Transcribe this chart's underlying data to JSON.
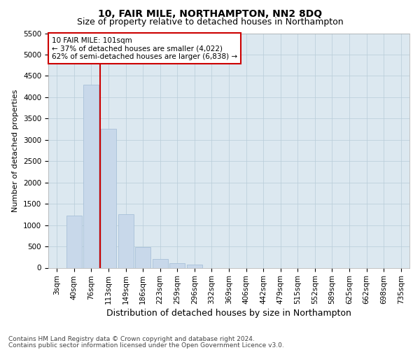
{
  "title": "10, FAIR MILE, NORTHAMPTON, NN2 8DQ",
  "subtitle": "Size of property relative to detached houses in Northampton",
  "xlabel": "Distribution of detached houses by size in Northampton",
  "ylabel": "Number of detached properties",
  "footer_line1": "Contains HM Land Registry data © Crown copyright and database right 2024.",
  "footer_line2": "Contains public sector information licensed under the Open Government Licence v3.0.",
  "bar_labels": [
    "3sqm",
    "40sqm",
    "76sqm",
    "113sqm",
    "149sqm",
    "186sqm",
    "223sqm",
    "259sqm",
    "296sqm",
    "332sqm",
    "369sqm",
    "406sqm",
    "442sqm",
    "479sqm",
    "515sqm",
    "552sqm",
    "589sqm",
    "625sqm",
    "662sqm",
    "698sqm",
    "735sqm"
  ],
  "bar_values": [
    0,
    1230,
    4300,
    3260,
    1260,
    490,
    200,
    100,
    70,
    0,
    0,
    0,
    0,
    0,
    0,
    0,
    0,
    0,
    0,
    0,
    0
  ],
  "bar_color": "#c8d8ea",
  "bar_edge_color": "#a8c0d8",
  "vline_color": "#cc0000",
  "annotation_text": "10 FAIR MILE: 101sqm\n← 37% of detached houses are smaller (4,022)\n62% of semi-detached houses are larger (6,838) →",
  "annotation_box_color": "#ffffff",
  "annotation_box_edge": "#cc0000",
  "annotation_fontsize": 7.5,
  "ylim_max": 5500,
  "yticks": [
    0,
    500,
    1000,
    1500,
    2000,
    2500,
    3000,
    3500,
    4000,
    4500,
    5000,
    5500
  ],
  "title_fontsize": 10,
  "subtitle_fontsize": 9,
  "xlabel_fontsize": 9,
  "ylabel_fontsize": 8,
  "tick_fontsize": 7.5,
  "footer_fontsize": 6.5,
  "background_color": "#ffffff",
  "axes_bg_color": "#dce8f0",
  "grid_color": "#b8ccd8"
}
